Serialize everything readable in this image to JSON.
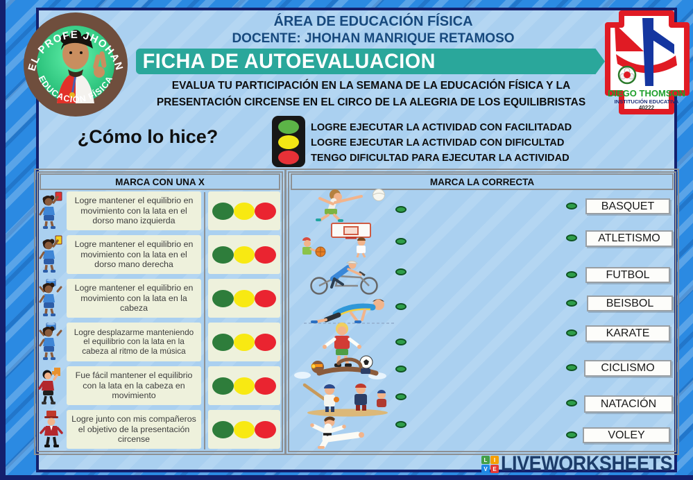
{
  "header": {
    "area_title": "ÁREA DE  EDUCACIÓN FÍSICA",
    "teacher_line": "DOCENTE: JHOHAN MANRIQUE RETAMOSO",
    "banner_title": "FICHA DE AUTOEVALUACION",
    "description_line1": "EVALUA TU PARTICIPACIÓN EN LA SEMANA DE LA EDUCACIÓN FÍSICA Y LA",
    "description_line2": "PRESENTACIÓN CIRCENSE EN EL CIRCO DE LA ALEGRIA DE LOS EQUILIBRISTAS"
  },
  "teacher_badge": {
    "arc_top": "EL PROFE JHOHAN",
    "arc_bottom": "EDUCACIÓN FÍSICA"
  },
  "school_badge": {
    "name": "DIEGO THOMSON",
    "subtitle": "INSTITUCIÓN EDUCATIVA",
    "code": "40222"
  },
  "intro": {
    "question": "¿Cómo lo hice?"
  },
  "legend": {
    "traffic_colors": [
      "#5cb447",
      "#f2e614",
      "#e73137"
    ],
    "items": [
      "LOGRE EJECUTAR LA ACTIVIDAD CON FACILITADAD",
      "LOGRE EJECUTAR LA ACTIVIDAD CON DIFICULTAD",
      "TENGO DIFICULTAD PARA EJECUTAR LA ACTIVIDAD"
    ]
  },
  "left_table": {
    "header": "MARCA CON UNA X",
    "mark_colors": [
      "#2e7d3b",
      "#f8e912",
      "#ea2430"
    ],
    "rows": [
      {
        "image": "girl-red-card",
        "text": "Logre mantener el equilibrio en movimiento con la lata en el dorso  mano izquierda"
      },
      {
        "image": "girl-yellow-card",
        "text": "Logre mantener el equilibrio en movimiento con la lata en el dorso  mano derecha"
      },
      {
        "image": "girl-can-on-head",
        "text": "Logre mantener el equilibrio en movimiento con la lata en la cabeza"
      },
      {
        "image": "girl-can-on-head",
        "text": "Logre desplazarme manteniendo el equilibrio  con la lata en la cabeza al ritmo de la música"
      },
      {
        "image": "showman-foam-finger",
        "text": "Fue fácil mantener el equilibrio con la lata en la cabeza en movimiento"
      },
      {
        "image": "ringmaster-red-hat",
        "text": "Logre junto con mis compañeros el objetivo de la presentación circense"
      }
    ]
  },
  "right_table": {
    "header": "MARCA LA CORRECTA",
    "images": [
      "volleyball-player",
      "basketball-kids",
      "cyclist",
      "sprinter",
      "soccer-boy",
      "swimmer",
      "baseball-players",
      "karate-kid"
    ],
    "options": [
      "BASQUET",
      "ATLETISMO",
      "FUTBOL",
      "BEISBOL",
      "KARATE",
      "CICLISMO",
      "NATACIÓN",
      "VOLEY"
    ]
  },
  "footer": {
    "brand": "LIVEWORKSHEETS",
    "logo_letters": [
      "L",
      "I",
      "V",
      "E"
    ],
    "logo_colors": [
      "#43a047",
      "#f59f00",
      "#1e88e5",
      "#e53935"
    ]
  },
  "colors": {
    "frame_blue": "#2b8ae2",
    "border_navy": "#13206e",
    "content_blue": "#aad0f0",
    "banner_teal": "#2aa79b",
    "title_blue": "#17497d",
    "cream": "#eef1dc",
    "table_border_gray": "#8d9093",
    "dot_green": "#2f9e4a",
    "footer_navy": "#1c3c69"
  }
}
